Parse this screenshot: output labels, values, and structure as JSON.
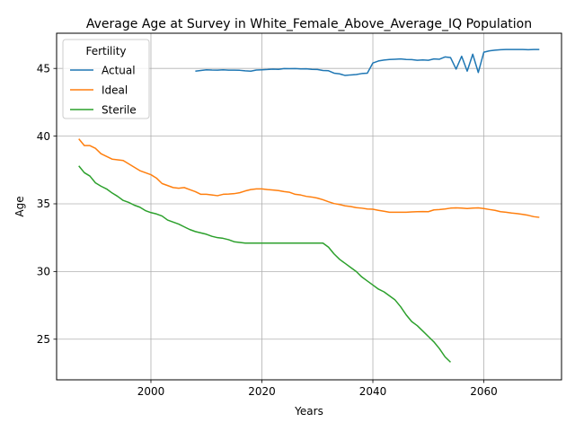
{
  "chart_data": {
    "type": "line",
    "title": "Average Age at Survey in White_Female_Above_Average_IQ Population",
    "xlabel": "Years",
    "ylabel": "Age",
    "xlim": [
      1983,
      2074
    ],
    "ylim": [
      22.0,
      47.6
    ],
    "xticks": [
      2000,
      2020,
      2040,
      2060
    ],
    "yticks": [
      25,
      30,
      35,
      40,
      45
    ],
    "grid": true,
    "legend": {
      "title": "Fertility",
      "position": "top-left"
    },
    "series": [
      {
        "name": "Actual",
        "color": "#1f77b4",
        "x": [
          2008,
          2009,
          2010,
          2011,
          2012,
          2013,
          2014,
          2015,
          2016,
          2017,
          2018,
          2019,
          2020,
          2021,
          2022,
          2023,
          2024,
          2025,
          2026,
          2027,
          2028,
          2029,
          2030,
          2031,
          2032,
          2033,
          2034,
          2035,
          2036,
          2037,
          2038,
          2039,
          2040,
          2041,
          2042,
          2043,
          2044,
          2045,
          2046,
          2047,
          2048,
          2049,
          2050,
          2051,
          2052,
          2053,
          2054,
          2055,
          2056,
          2057,
          2058,
          2059,
          2060,
          2061,
          2062,
          2063,
          2064,
          2065,
          2066,
          2067,
          2068,
          2069,
          2070
        ],
        "y": [
          44.8,
          44.85,
          44.9,
          44.88,
          44.87,
          44.9,
          44.87,
          44.87,
          44.86,
          44.82,
          44.8,
          44.88,
          44.9,
          44.92,
          44.95,
          44.93,
          44.99,
          44.98,
          44.99,
          44.96,
          44.97,
          44.93,
          44.92,
          44.85,
          44.83,
          44.65,
          44.6,
          44.48,
          44.52,
          44.55,
          44.62,
          44.65,
          45.4,
          45.55,
          45.62,
          45.66,
          45.68,
          45.7,
          45.66,
          45.65,
          45.6,
          45.63,
          45.6,
          45.7,
          45.68,
          45.85,
          45.8,
          44.95,
          45.9,
          44.8,
          46.05,
          44.7,
          46.2,
          46.3,
          46.35,
          46.38,
          46.4,
          46.4,
          46.4,
          46.4,
          46.38,
          46.4,
          46.4
        ]
      },
      {
        "name": "Ideal",
        "color": "#ff7f0e",
        "x": [
          1987,
          1988,
          1989,
          1990,
          1991,
          1992,
          1993,
          1994,
          1995,
          1996,
          1997,
          1998,
          1999,
          2000,
          2001,
          2002,
          2003,
          2004,
          2005,
          2006,
          2007,
          2008,
          2009,
          2010,
          2011,
          2012,
          2013,
          2014,
          2015,
          2016,
          2017,
          2018,
          2019,
          2020,
          2021,
          2022,
          2023,
          2024,
          2025,
          2026,
          2027,
          2028,
          2029,
          2030,
          2031,
          2032,
          2033,
          2034,
          2035,
          2036,
          2037,
          2038,
          2039,
          2040,
          2041,
          2042,
          2043,
          2044,
          2045,
          2046,
          2047,
          2048,
          2049,
          2050,
          2051,
          2052,
          2053,
          2054,
          2055,
          2056,
          2057,
          2058,
          2059,
          2060,
          2061,
          2062,
          2063,
          2064,
          2065,
          2066,
          2067,
          2068,
          2069,
          2070
        ],
        "y": [
          39.8,
          39.3,
          39.3,
          39.1,
          38.7,
          38.5,
          38.3,
          38.25,
          38.2,
          37.95,
          37.7,
          37.45,
          37.3,
          37.15,
          36.9,
          36.5,
          36.35,
          36.2,
          36.15,
          36.2,
          36.05,
          35.9,
          35.7,
          35.7,
          35.65,
          35.6,
          35.7,
          35.72,
          35.75,
          35.82,
          35.95,
          36.05,
          36.1,
          36.1,
          36.05,
          36.02,
          35.98,
          35.9,
          35.85,
          35.7,
          35.65,
          35.55,
          35.5,
          35.42,
          35.3,
          35.15,
          35.02,
          34.95,
          34.85,
          34.8,
          34.72,
          34.68,
          34.62,
          34.6,
          34.52,
          34.45,
          34.38,
          34.38,
          34.38,
          34.38,
          34.4,
          34.42,
          34.43,
          34.42,
          34.55,
          34.58,
          34.62,
          34.68,
          34.7,
          34.68,
          34.65,
          34.68,
          34.7,
          34.65,
          34.58,
          34.52,
          34.42,
          34.38,
          34.32,
          34.28,
          34.22,
          34.15,
          34.05,
          34.0
        ]
      },
      {
        "name": "Sterile",
        "color": "#2ca02c",
        "x": [
          1987,
          1988,
          1989,
          1990,
          1991,
          1992,
          1993,
          1994,
          1995,
          1996,
          1997,
          1998,
          1999,
          2000,
          2001,
          2002,
          2003,
          2004,
          2005,
          2006,
          2007,
          2008,
          2009,
          2010,
          2011,
          2012,
          2013,
          2014,
          2015,
          2016,
          2017,
          2018,
          2019,
          2020,
          2021,
          2022,
          2023,
          2024,
          2025,
          2026,
          2027,
          2028,
          2029,
          2030,
          2031,
          2032,
          2033,
          2034,
          2035,
          2036,
          2037,
          2038,
          2039,
          2040,
          2041,
          2042,
          2043,
          2044,
          2045,
          2046,
          2047,
          2048,
          2049,
          2050,
          2051,
          2052,
          2053,
          2054
        ],
        "y": [
          37.8,
          37.3,
          37.05,
          36.55,
          36.3,
          36.1,
          35.8,
          35.55,
          35.25,
          35.1,
          34.9,
          34.75,
          34.5,
          34.35,
          34.25,
          34.1,
          33.8,
          33.65,
          33.5,
          33.3,
          33.1,
          32.95,
          32.85,
          32.75,
          32.6,
          32.5,
          32.45,
          32.35,
          32.2,
          32.15,
          32.1,
          32.1,
          32.1,
          32.1,
          32.1,
          32.1,
          32.1,
          32.1,
          32.1,
          32.1,
          32.1,
          32.1,
          32.1,
          32.1,
          32.1,
          31.8,
          31.3,
          30.9,
          30.6,
          30.3,
          30.0,
          29.6,
          29.3,
          29.0,
          28.7,
          28.5,
          28.2,
          27.9,
          27.4,
          26.8,
          26.3,
          26.0,
          25.6,
          25.2,
          24.8,
          24.3,
          23.7,
          23.3
        ]
      }
    ]
  }
}
